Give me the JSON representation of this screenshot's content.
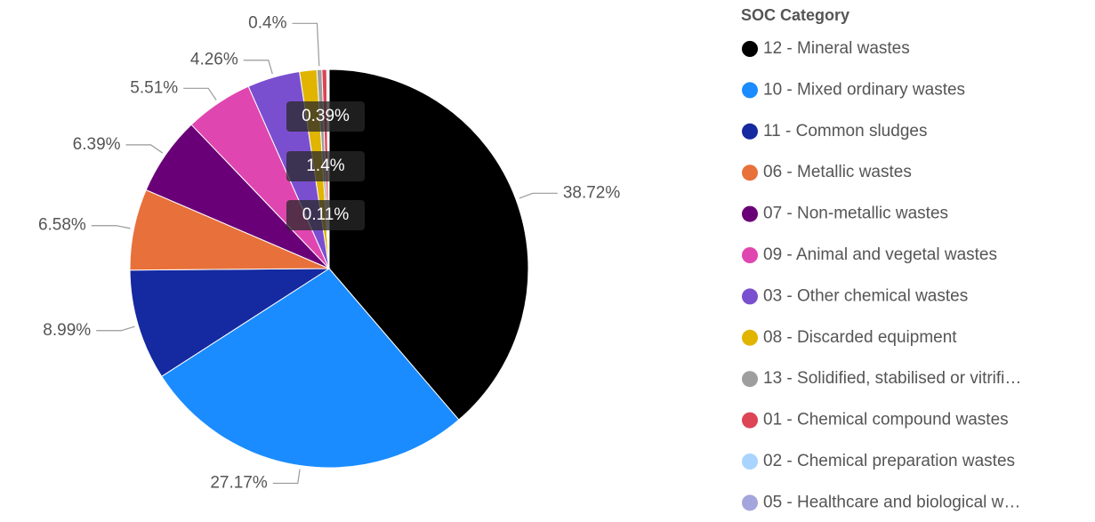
{
  "chart_data": {
    "type": "pie",
    "legend_title": "SOC Category",
    "categories": [
      "12 - Mineral wastes",
      "10 - Mixed ordinary wastes",
      "11 - Common sludges",
      "06 - Metallic wastes",
      "07 - Non-metallic wastes",
      "09 - Animal and vegetal wastes",
      "03 - Other chemical wastes",
      "08 - Discarded equipment",
      "13 - Solidified, stabilised or vitrifi…",
      "01 - Chemical compound wastes",
      "02 - Chemical preparation wastes",
      "05 - Healthcare and biological w…"
    ],
    "values": [
      38.72,
      27.17,
      8.99,
      6.58,
      6.39,
      5.51,
      4.26,
      1.4,
      0.4,
      0.39,
      0.11,
      0.08
    ],
    "value_labels": [
      "38.72%",
      "27.17%",
      "8.99%",
      "6.58%",
      "6.39%",
      "5.51%",
      "4.26%",
      "1.4%",
      "0.4%",
      "0.39%",
      "0.11%",
      null
    ],
    "colors": [
      "#000000",
      "#1a8cff",
      "#1529a0",
      "#e8703a",
      "#6a0077",
      "#e046b0",
      "#7a4fcf",
      "#e0b400",
      "#9e9e9e",
      "#dd4455",
      "#a8d4ff",
      "#a5a5dd"
    ],
    "legend": "right"
  }
}
